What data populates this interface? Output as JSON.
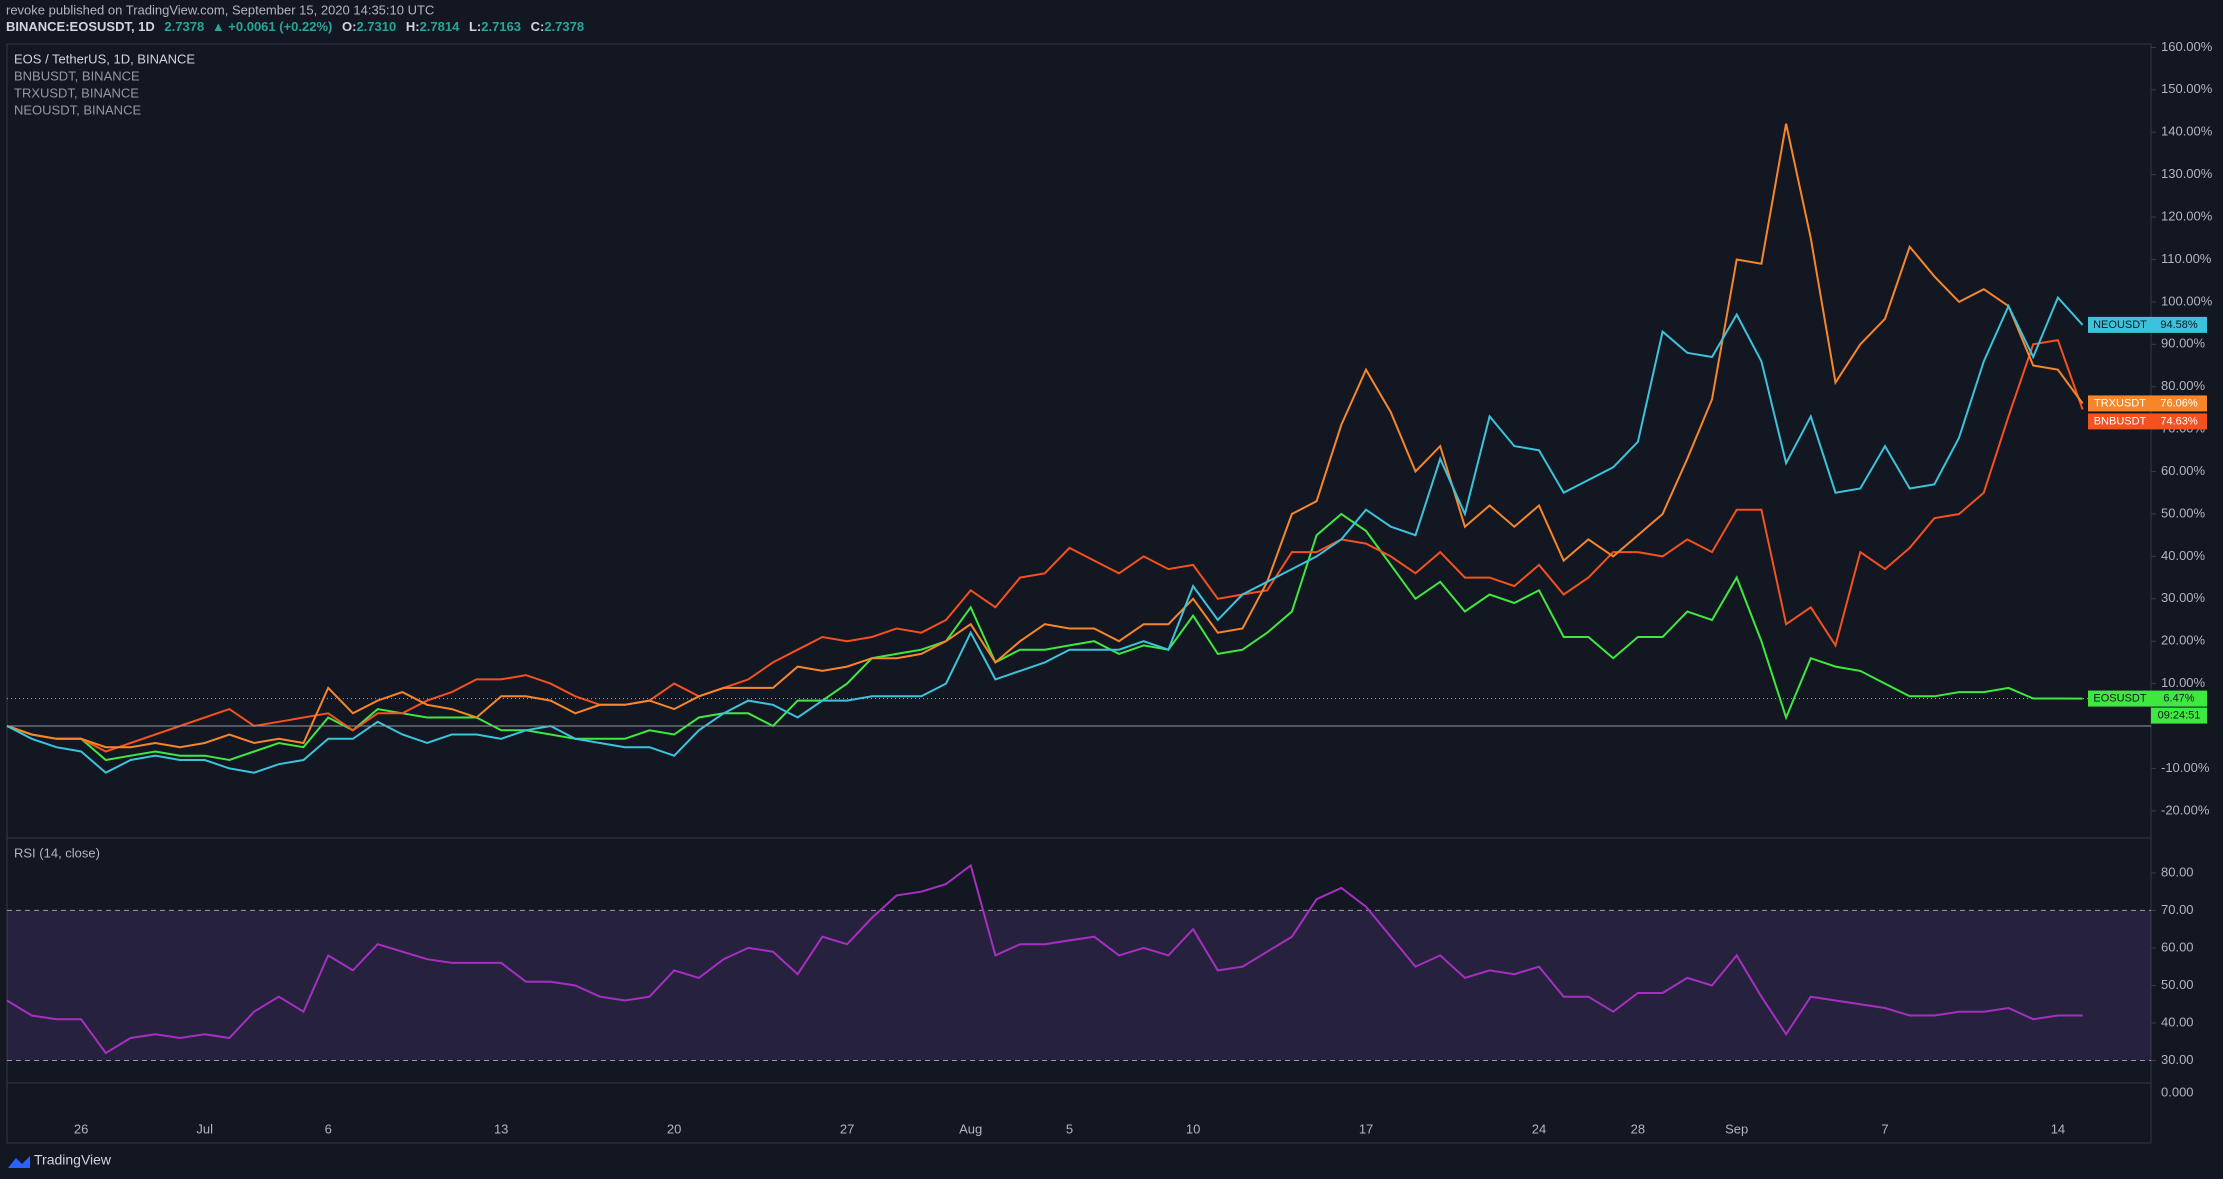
{
  "header": {
    "publisher": "revoke published on TradingView.com, September 15, 2020 14:35:10 UTC",
    "symbol": "BINANCE:EOSUSDT, 1D",
    "last": "2.7378",
    "change": "▲ +0.0061 (+0.22%)",
    "o_label": "O:",
    "o": "2.7310",
    "h_label": "H:",
    "h": "2.7814",
    "l_label": "L:",
    "l": "2.7163",
    "c_label": "C:",
    "c": "2.7378"
  },
  "footer": {
    "brand": "TradingView"
  },
  "chart_data": [
    {
      "type": "line",
      "categories": [
        null,
        null,
        null,
        "26",
        null,
        null,
        null,
        null,
        "Jul",
        null,
        null,
        null,
        null,
        "6",
        null,
        null,
        null,
        null,
        null,
        null,
        "13",
        null,
        null,
        null,
        null,
        null,
        null,
        "20",
        null,
        null,
        null,
        null,
        null,
        null,
        "27",
        null,
        null,
        null,
        null,
        "Aug",
        null,
        null,
        null,
        "5",
        null,
        null,
        null,
        null,
        "10",
        null,
        null,
        null,
        null,
        null,
        null,
        "17",
        null,
        null,
        null,
        null,
        null,
        null,
        "24",
        null,
        null,
        null,
        "28",
        null,
        null,
        null,
        "Sep",
        null,
        null,
        null,
        null,
        null,
        "7",
        null,
        null,
        null,
        null,
        null,
        null,
        "14",
        null
      ],
      "ylim": [
        -26.4,
        160.8
      ],
      "yticks": [
        {
          "value": -20,
          "label": "-20.00%"
        },
        {
          "value": -10,
          "label": "-10.00%"
        },
        {
          "value": 10,
          "label": "10.00%"
        },
        {
          "value": 20,
          "label": "20.00%"
        },
        {
          "value": 30,
          "label": "30.00%"
        },
        {
          "value": 40,
          "label": "40.00%"
        },
        {
          "value": 50,
          "label": "50.00%"
        },
        {
          "value": 60,
          "label": "60.00%"
        },
        {
          "value": 70,
          "label": "70.00%"
        },
        {
          "value": 80,
          "label": "80.00%"
        },
        {
          "value": 90,
          "label": "90.00%"
        },
        {
          "value": 100,
          "label": "100.00%"
        },
        {
          "value": 110,
          "label": "110.00%"
        },
        {
          "value": 120,
          "label": "120.00%"
        },
        {
          "value": 130,
          "label": "130.00%"
        },
        {
          "value": 140,
          "label": "140.00%"
        },
        {
          "value": 150,
          "label": "150.00%"
        },
        {
          "value": 160,
          "label": "160.00%"
        }
      ],
      "countdown": "09:24:51",
      "series": [
        {
          "name": "EOS / TetherUS, 1D, BINANCE",
          "badge": "EOSUSDT",
          "last_label": "6.47%",
          "color": "#3fe83f",
          "values": [
            0,
            -2,
            -3,
            -3,
            -8,
            -7,
            -6,
            -7,
            -7,
            -8,
            -6,
            -4,
            -5,
            2,
            -1,
            4,
            3,
            2,
            2,
            2,
            -1,
            -1,
            -2,
            -3,
            -3,
            -3,
            -1,
            -2,
            2,
            3,
            3,
            0,
            6,
            6,
            10,
            16,
            17,
            18,
            20,
            28,
            15,
            18,
            18,
            19,
            20,
            17,
            19,
            18,
            26,
            17,
            18,
            22,
            27,
            45,
            50,
            46,
            38,
            30,
            34,
            27,
            31,
            29,
            32,
            21,
            21,
            16,
            21,
            21,
            27,
            25,
            35,
            20,
            2,
            16,
            14,
            13,
            10,
            7,
            7,
            8,
            8,
            9,
            6.5,
            6.5,
            6.47
          ]
        },
        {
          "name": "BNBUSDT, BINANCE",
          "badge": "BNBUSDT",
          "last_label": "74.63%",
          "color": "#f4511e",
          "values": [
            0,
            -2,
            -3,
            -3,
            -6,
            -4,
            -2,
            0,
            2,
            4,
            0,
            1,
            2,
            3,
            -1,
            3,
            3,
            6,
            8,
            11,
            11,
            12,
            10,
            7,
            5,
            5,
            6,
            10,
            7,
            9,
            11,
            15,
            18,
            21,
            20,
            21,
            23,
            22,
            25,
            32,
            28,
            35,
            36,
            42,
            39,
            36,
            40,
            37,
            38,
            30,
            31,
            32,
            41,
            41,
            44,
            43,
            40,
            36,
            41,
            35,
            35,
            33,
            38,
            31,
            35,
            41,
            41,
            40,
            44,
            41,
            51,
            51,
            24,
            28,
            19,
            41,
            37,
            42,
            49,
            50,
            55,
            73,
            90,
            91,
            74.63
          ]
        },
        {
          "name": "TRXUSDT, BINANCE",
          "badge": "TRXUSDT",
          "last_label": "76.06%",
          "color": "#f7862a",
          "values": [
            0,
            -2,
            -3,
            -3,
            -5,
            -5,
            -4,
            -5,
            -4,
            -2,
            -4,
            -3,
            -4,
            9,
            3,
            6,
            8,
            5,
            4,
            2,
            7,
            7,
            6,
            3,
            5,
            5,
            6,
            4,
            7,
            9,
            9,
            9,
            14,
            13,
            14,
            16,
            16,
            17,
            20,
            24,
            15,
            20,
            24,
            23,
            23,
            20,
            24,
            24,
            30,
            22,
            23,
            34,
            50,
            53,
            71,
            84,
            74,
            60,
            66,
            47,
            52,
            47,
            52,
            39,
            44,
            40,
            45,
            50,
            63,
            77,
            110,
            109,
            142,
            115,
            81,
            90,
            96,
            113,
            106,
            100,
            103,
            99,
            85,
            84,
            76.06
          ]
        },
        {
          "name": "NEOUSDT, BINANCE",
          "badge": "NEOUSDT",
          "last_label": "94.58%",
          "color": "#3cc3dc",
          "values": [
            0,
            -3,
            -5,
            -6,
            -11,
            -8,
            -7,
            -8,
            -8,
            -10,
            -11,
            -9,
            -8,
            -3,
            -3,
            1,
            -2,
            -4,
            -2,
            -2,
            -3,
            -1,
            0,
            -3,
            -4,
            -5,
            -5,
            -7,
            -1,
            3,
            6,
            5,
            2,
            6,
            6,
            7,
            7,
            7,
            10,
            22,
            11,
            13,
            15,
            18,
            18,
            18,
            20,
            18,
            33,
            25,
            31,
            34,
            37,
            40,
            44,
            51,
            47,
            45,
            63,
            50,
            73,
            66,
            65,
            55,
            58,
            61,
            67,
            93,
            88,
            87,
            97,
            86,
            62,
            73,
            55,
            56,
            66,
            56,
            57,
            68,
            86,
            99,
            87,
            101,
            94.58
          ]
        }
      ]
    },
    {
      "type": "line",
      "title": "RSI (14, close)",
      "ylim": [
        24,
        89.3
      ],
      "bands": [
        30,
        70
      ],
      "extra_label": "0.000",
      "yticks": [
        {
          "value": 30,
          "label": "30.00"
        },
        {
          "value": 40,
          "label": "40.00"
        },
        {
          "value": 50,
          "label": "50.00"
        },
        {
          "value": 60,
          "label": "60.00"
        },
        {
          "value": 70,
          "label": "70.00"
        },
        {
          "value": 80,
          "label": "80.00"
        }
      ],
      "series": [
        {
          "color": "#a62fc2",
          "values": [
            46,
            42,
            41,
            41,
            32,
            36,
            37,
            36,
            37,
            36,
            43,
            47,
            43,
            58,
            54,
            61,
            59,
            57,
            56,
            56,
            56,
            51,
            51,
            50,
            47,
            46,
            47,
            54,
            52,
            57,
            60,
            59,
            53,
            63,
            61,
            68,
            74,
            75,
            77,
            82,
            58,
            61,
            61,
            62,
            63,
            58,
            60,
            58,
            65,
            54,
            55,
            59,
            63,
            73,
            76,
            71,
            63,
            55,
            58,
            52,
            54,
            53,
            55,
            47,
            47,
            43,
            48,
            48,
            52,
            50,
            58,
            47,
            37,
            47,
            46,
            45,
            44,
            42,
            42,
            43,
            43,
            44,
            41,
            42,
            42
          ]
        }
      ]
    }
  ]
}
